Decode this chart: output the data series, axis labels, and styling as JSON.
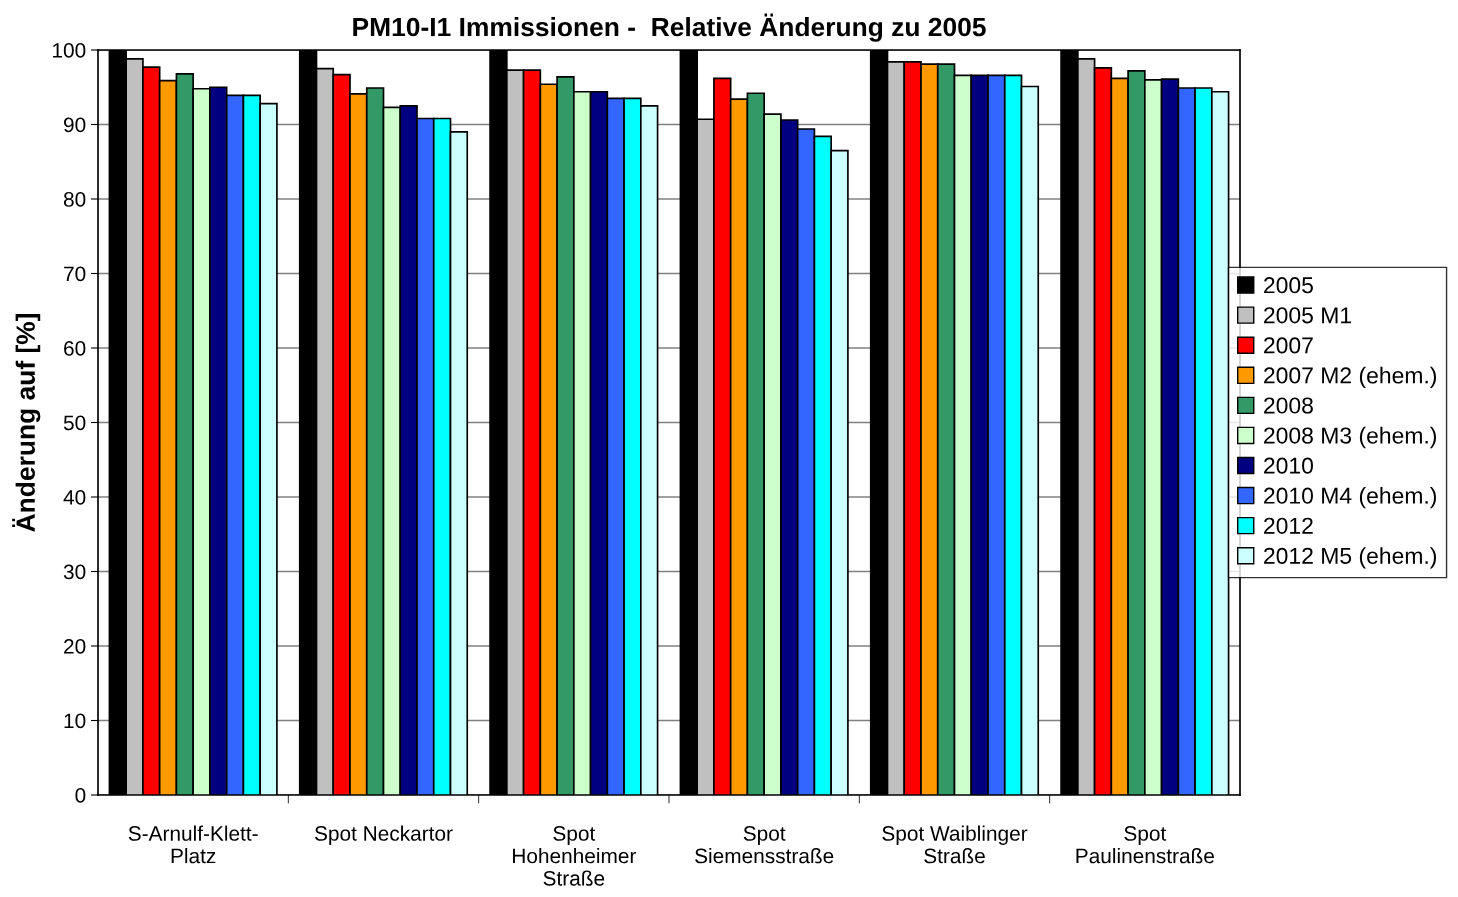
{
  "chart_data": {
    "type": "bar",
    "title": "PM10-I1 Immissionen -  Relative Änderung zu 2005",
    "ylabel": "Änderung auf [%]",
    "categories": [
      "S-Arnulf-Klett-\nPlatz",
      "Spot Neckartor",
      "Spot\nHohenheimer\nStraße",
      "Spot\nSiemensstraße",
      "Spot Waiblinger\nStraße",
      "Spot\nPaulinenstraße"
    ],
    "series": [
      {
        "name": "2005",
        "color": "#000000",
        "values": [
          100,
          100,
          100,
          100,
          100,
          100
        ]
      },
      {
        "name": "2005 M1",
        "color": "#c0c0c0",
        "values": [
          98.8,
          97.5,
          97.3,
          90.7,
          98.4,
          98.8
        ]
      },
      {
        "name": "2007",
        "color": "#ff0000",
        "values": [
          97.7,
          96.7,
          97.3,
          96.2,
          98.4,
          97.6
        ]
      },
      {
        "name": "2007 M2 (ehem.)",
        "color": "#ff9900",
        "values": [
          95.9,
          94.1,
          95.4,
          93.4,
          98.1,
          96.2
        ]
      },
      {
        "name": "2008",
        "color": "#339966",
        "values": [
          96.8,
          94.9,
          96.4,
          94.2,
          98.1,
          97.2
        ]
      },
      {
        "name": "2008 M3 (ehem.)",
        "color": "#ccffcc",
        "values": [
          94.8,
          92.3,
          94.4,
          91.4,
          96.6,
          96.0
        ]
      },
      {
        "name": "2010",
        "color": "#000080",
        "values": [
          95.0,
          92.5,
          94.4,
          90.6,
          96.6,
          96.1
        ]
      },
      {
        "name": "2010 M4 (ehem.)",
        "color": "#3366ff",
        "values": [
          93.9,
          90.8,
          93.5,
          89.4,
          96.6,
          94.9
        ]
      },
      {
        "name": "2012",
        "color": "#00ffff",
        "values": [
          93.9,
          90.8,
          93.5,
          88.4,
          96.6,
          94.9
        ]
      },
      {
        "name": "2012 M5 (ehem.)",
        "color": "#ccffff",
        "values": [
          92.8,
          89.0,
          92.5,
          86.5,
          95.1,
          94.4
        ]
      }
    ],
    "ylim": [
      0,
      100
    ],
    "yticks": [
      0,
      10,
      20,
      30,
      40,
      50,
      60,
      70,
      80,
      90,
      100
    ],
    "grid": "y",
    "legend": "right"
  }
}
